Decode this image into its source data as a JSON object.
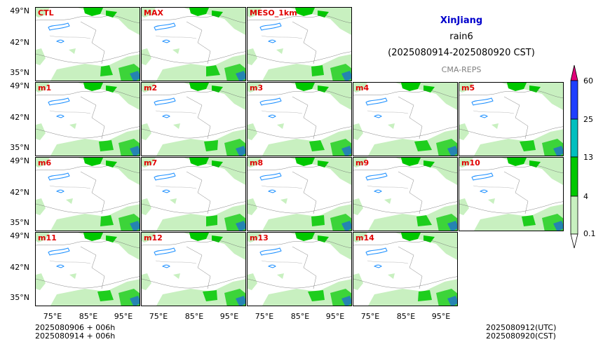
{
  "header": {
    "region": "XinJiang",
    "variable": "rain6",
    "period": "(2025080914-2025080920 CST)",
    "system": "CMA-REPS",
    "region_color": "#0000cc",
    "system_color": "#808080"
  },
  "panels": [
    "CTL",
    "MAX",
    "MESO_1km",
    "m1",
    "m2",
    "m3",
    "m4",
    "m5",
    "m6",
    "m7",
    "m8",
    "m9",
    "m10",
    "m11",
    "m12",
    "m13",
    "m14"
  ],
  "axes": {
    "lat_ticks": [
      "49°N",
      "42°N",
      "35°N"
    ],
    "lon_ticks": [
      "75°E",
      "85°E",
      "95°E"
    ]
  },
  "colorbar": {
    "levels": [
      "60",
      "25",
      "13",
      "4",
      "0.1"
    ],
    "colors": [
      "#1f3fff",
      "#00bfbf",
      "#00c800",
      "#c8f0c0"
    ],
    "over_color": "#e0007a"
  },
  "footer": {
    "init_utc": "2025080906  +  006h",
    "init_cst": "2025080914  +  006h",
    "valid_utc": "2025080912(UTC)",
    "valid_cst": "2025080920(CST)"
  }
}
